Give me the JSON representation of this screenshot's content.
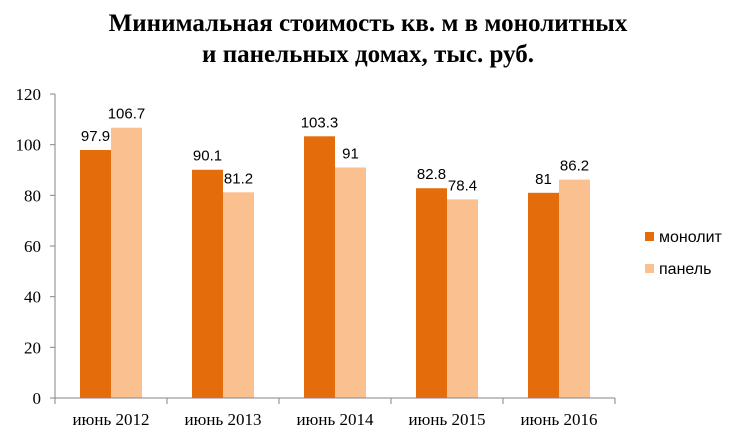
{
  "chart_data": {
    "type": "bar",
    "title_lines": [
      "Минимальная стоимость кв. м в монолитных",
      "и панельных домах, тыс. руб."
    ],
    "categories": [
      "июнь 2012",
      "июнь 2013",
      "июнь 2014",
      "июнь 2015",
      "июнь 2016"
    ],
    "series": [
      {
        "name": "монолит",
        "values": [
          97.9,
          90.1,
          103.3,
          82.8,
          81
        ],
        "labels": [
          "97.9",
          "90.1",
          "103.3",
          "82.8",
          "81"
        ],
        "color": "#E46C0A"
      },
      {
        "name": "панель",
        "values": [
          106.7,
          81.2,
          91,
          78.4,
          86.2
        ],
        "labels": [
          "106.7",
          "81.2",
          "91",
          "78.4",
          "86.2"
        ],
        "color": "#FAC090"
      }
    ],
    "y_ticks": [
      "0",
      "20",
      "40",
      "60",
      "80",
      "100",
      "120"
    ],
    "ylim": [
      0,
      120
    ],
    "grid": false,
    "legend_position": "right"
  }
}
